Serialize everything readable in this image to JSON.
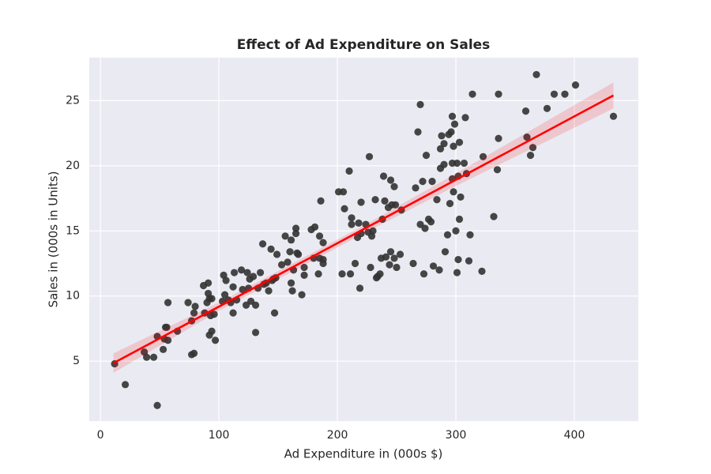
{
  "chart_data": {
    "type": "scatter",
    "title": "Effect of Ad Expenditure on Sales",
    "x_label": "Ad Expenditure in (000s $)",
    "y_label": "Sales in (000s in Units)",
    "x": [
      12,
      21,
      37,
      39,
      45,
      48,
      48,
      53,
      54,
      55,
      56,
      57,
      57,
      65,
      74,
      77,
      77,
      79,
      79,
      80,
      87,
      88,
      90,
      91,
      91,
      92,
      92,
      93,
      94,
      94,
      96,
      97,
      103,
      104,
      105,
      106,
      108,
      110,
      112,
      112,
      113,
      115,
      119,
      120,
      123,
      124,
      125,
      126,
      127,
      129,
      131,
      131,
      133,
      135,
      137,
      138,
      140,
      142,
      144,
      145,
      146,
      147,
      148,
      149,
      153,
      156,
      158,
      160,
      161,
      161,
      162,
      163,
      165,
      165,
      166,
      167,
      170,
      172,
      172,
      178,
      180,
      181,
      184,
      185,
      185,
      186,
      188,
      188,
      188,
      201,
      204,
      205,
      206,
      210,
      211,
      212,
      212,
      215,
      217,
      218,
      219,
      220,
      220,
      224,
      226,
      227,
      228,
      229,
      230,
      232,
      233,
      234,
      236,
      237,
      238,
      239,
      240,
      241,
      243,
      244,
      245,
      245,
      246,
      248,
      248,
      249,
      250,
      253,
      254,
      264,
      266,
      268,
      270,
      270,
      272,
      273,
      274,
      275,
      277,
      279,
      280,
      281,
      284,
      286,
      287,
      287,
      288,
      290,
      290,
      291,
      293,
      294,
      295,
      296,
      297,
      297,
      297,
      298,
      298,
      299,
      300,
      301,
      301,
      302,
      302,
      303,
      303,
      304,
      307,
      308,
      309,
      311,
      312,
      314,
      322,
      323,
      332,
      335,
      336,
      336,
      359,
      360,
      363,
      365,
      368,
      377,
      383,
      392,
      401,
      433
    ],
    "values": [
      4.8,
      3.2,
      5.7,
      5.3,
      5.3,
      1.6,
      6.9,
      5.9,
      6.7,
      7.6,
      7.6,
      6.6,
      9.5,
      7.3,
      9.5,
      8.1,
      5.5,
      5.6,
      8.7,
      9.2,
      10.8,
      8.7,
      9.5,
      11,
      10.2,
      7,
      9.8,
      8.5,
      9.8,
      7.3,
      8.6,
      6.6,
      9.6,
      11.6,
      10.1,
      11.2,
      9.7,
      9.5,
      10.7,
      8.7,
      11.8,
      9.7,
      12,
      10.5,
      9.3,
      11.8,
      10.6,
      11.3,
      9.6,
      11.5,
      7.2,
      9.3,
      10.6,
      11.8,
      14,
      10.9,
      11,
      10.4,
      13.6,
      11.2,
      11.3,
      8.7,
      11.4,
      13.2,
      12.4,
      14.6,
      12.6,
      13.4,
      11,
      14.3,
      10.4,
      12,
      15.2,
      14.8,
      13.3,
      13.2,
      10.1,
      12.2,
      11.6,
      15.1,
      12.9,
      15.3,
      11.7,
      14.6,
      12.9,
      17.3,
      12.8,
      12.5,
      14.1,
      18,
      11.7,
      18,
      16.7,
      19.6,
      11.7,
      16,
      15.5,
      12.5,
      14.5,
      15.6,
      10.6,
      17.2,
      14.8,
      15.5,
      14.9,
      20.7,
      12.2,
      14.6,
      15,
      17.4,
      11.4,
      11.5,
      11.7,
      12.9,
      15.9,
      19.2,
      17.3,
      13,
      16.8,
      12.4,
      18.9,
      13.4,
      17,
      18.4,
      12.9,
      17,
      12.2,
      13.2,
      16.6,
      12.5,
      18.3,
      22.6,
      24.7,
      15.5,
      18.8,
      11.7,
      15.2,
      20.8,
      15.9,
      15.7,
      18.8,
      12.3,
      17.4,
      12,
      19.8,
      21.3,
      22.3,
      20.1,
      21.7,
      13.4,
      14.7,
      22.4,
      17.1,
      22.6,
      20.2,
      19,
      23.8,
      21.5,
      18,
      23.2,
      15,
      11.8,
      20.2,
      12.8,
      19.2,
      21.8,
      15.9,
      17.6,
      20.2,
      23.7,
      19.4,
      12.7,
      14.7,
      25.5,
      11.9,
      20.7,
      16.1,
      19.7,
      22.1,
      25.5,
      24.2,
      22.2,
      20.8,
      21.4,
      27,
      24.4,
      25.5,
      25.5,
      26.2,
      23.8
    ],
    "color": "#333333",
    "fit": {
      "x": [
        11,
        433
      ],
      "values": [
        4.85,
        25.4
      ],
      "color": "#ff0000"
    },
    "ci_band": {
      "x": [
        11,
        100,
        220,
        300,
        433
      ],
      "lower": [
        4.1,
        8.85,
        14.7,
        18.45,
        24.4
      ],
      "upper": [
        5.6,
        9.5,
        15.3,
        19.4,
        26.4
      ],
      "color": "#ff0000"
    },
    "xlim": [
      -9.4,
      454
    ],
    "ylim": [
      0.4,
      28.3
    ],
    "xticks": [
      0,
      100,
      200,
      300,
      400
    ],
    "yticks": [
      5,
      10,
      15,
      20,
      25
    ],
    "grid": true
  }
}
